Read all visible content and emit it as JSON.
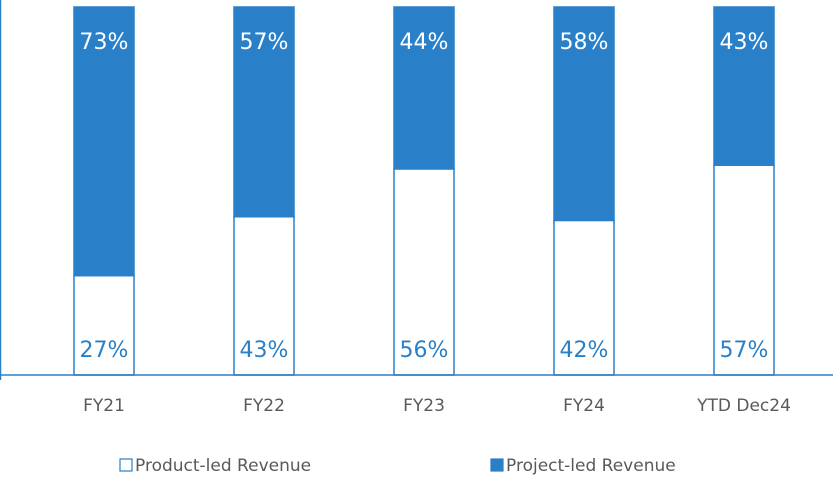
{
  "chart_data": {
    "type": "stacked_bar",
    "categories": [
      "FY21",
      "FY22",
      "FY23",
      "FY24",
      "YTD Dec24"
    ],
    "series": [
      {
        "name": "Product-led Revenue",
        "color": "#ffffff",
        "values": [
          27,
          43,
          56,
          42,
          57
        ],
        "value_labels": [
          "27%",
          "43%",
          "56%",
          "42%",
          "57%"
        ]
      },
      {
        "name": "Project-led Revenue",
        "color": "#2a80c8",
        "values": [
          73,
          57,
          44,
          58,
          43
        ],
        "value_labels": [
          "73%",
          "57%",
          "44%",
          "58%",
          "43%"
        ]
      }
    ],
    "ylim": [
      0,
      100
    ],
    "legend": "bottom"
  }
}
